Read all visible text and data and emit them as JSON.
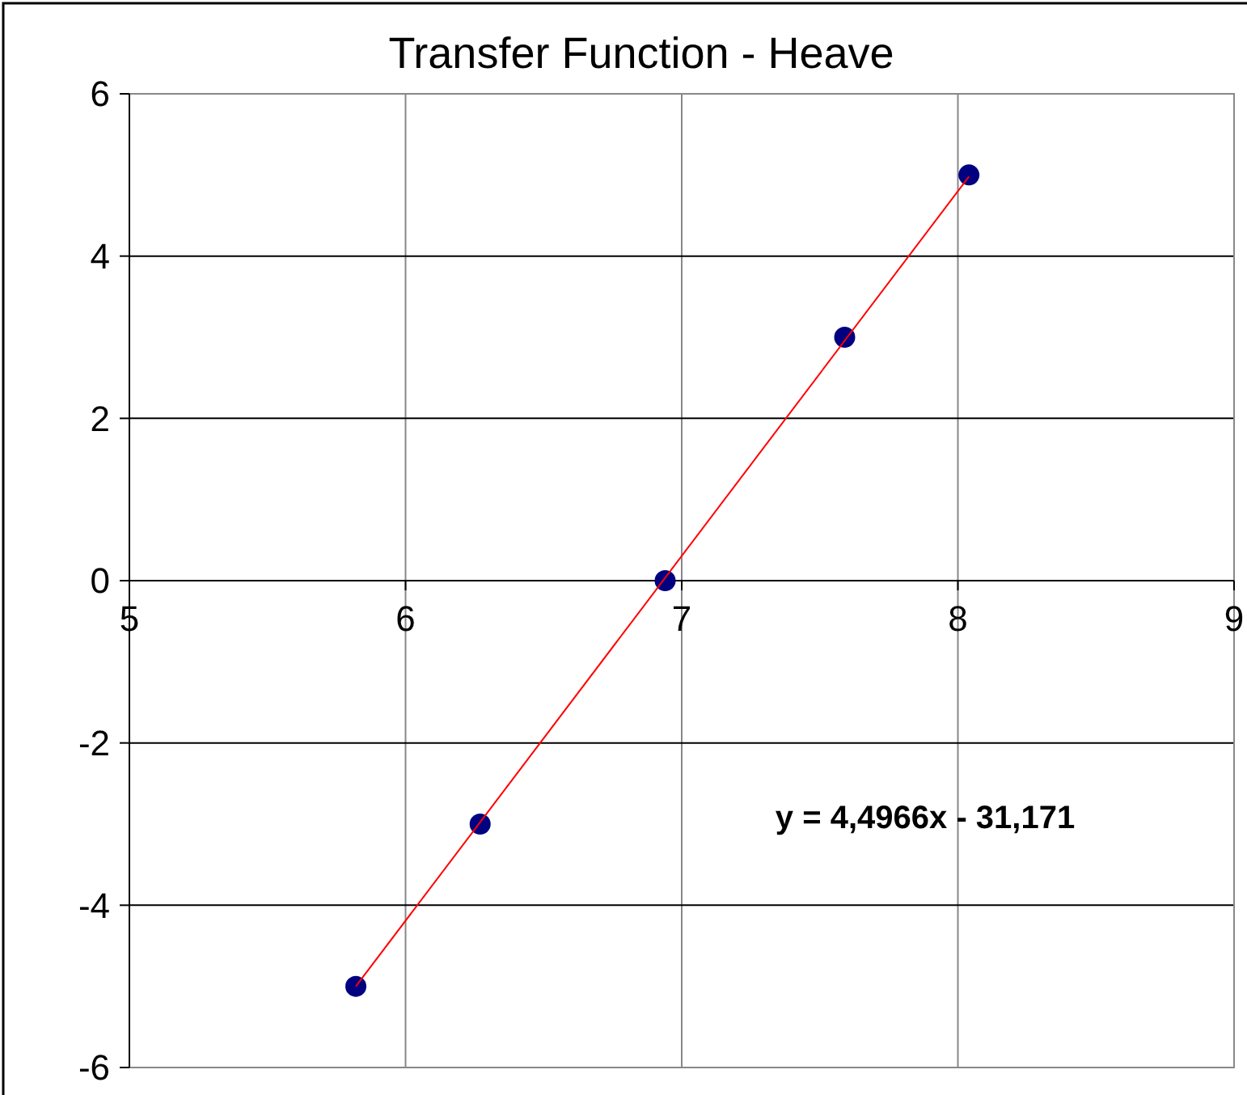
{
  "chart_data": {
    "type": "scatter",
    "title": "Transfer Function - Heave",
    "xlim": [
      5,
      9
    ],
    "xticks": [
      5,
      6,
      7,
      8,
      9
    ],
    "ylim": [
      -6,
      6
    ],
    "yticks": [
      -6,
      -4,
      -2,
      0,
      2,
      4,
      6
    ],
    "grid": true,
    "marker": "circle",
    "series": [
      {
        "color": "#000080",
        "x": [
          5.82,
          6.27,
          6.94,
          7.59,
          8.04
        ],
        "values": [
          -5,
          -3,
          0,
          3,
          5
        ]
      },
      {
        "type": "line",
        "color": "#ff0000",
        "marker": "none",
        "x": [
          5.82,
          8.04
        ],
        "values": [
          -5.0,
          4.98
        ]
      }
    ],
    "annotations": [
      "y = 4,4966x - 31,171"
    ]
  }
}
